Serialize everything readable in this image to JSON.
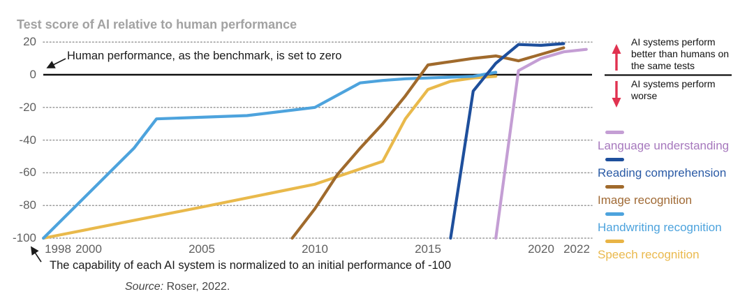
{
  "title": "Test score of AI relative to human performance",
  "annotations": {
    "benchmark_note": "Human performance, as the benchmark, is set to zero",
    "normalization_note": "The capability of each AI system is normalized to an initial performance of -100",
    "source_label": "Source:",
    "source_value": "Roser, 2022."
  },
  "side_panel": {
    "above_text": "AI systems perform better than humans on the same tests",
    "below_text": "AI systems perform worse",
    "arrow_color": "#e03250"
  },
  "legend": [
    {
      "label": "Language understanding",
      "swatch_color": "#c49ed4",
      "text_color": "#a678bd"
    },
    {
      "label": "Reading comprehension",
      "swatch_color": "#1e4f9c",
      "text_color": "#2a5aa5"
    },
    {
      "label": "Image recognition",
      "swatch_color": "#a06a2c",
      "text_color": "#a06a35"
    },
    {
      "label": "Handwriting recognition",
      "swatch_color": "#4da3dd",
      "text_color": "#4da3dd"
    },
    {
      "label": "Speech recognition",
      "swatch_color": "#e9b445",
      "text_color": "#eab94d"
    }
  ],
  "chart_data": {
    "type": "line",
    "title": "Test score of AI relative to human performance",
    "xlim": [
      1998,
      2022.6
    ],
    "ylim": [
      -104,
      22
    ],
    "grid": "dotted horizontal gridlines, solid black baseline at 0",
    "baseline_value": 0,
    "x_ticks": [
      {
        "label": "1998",
        "year": 1998
      },
      {
        "label": "2000",
        "year": 2000
      },
      {
        "label": "2005",
        "year": 2005
      },
      {
        "label": "2010",
        "year": 2010
      },
      {
        "label": "2015",
        "year": 2015
      },
      {
        "label": "2020",
        "year": 2020
      },
      {
        "label": "2022",
        "year": 2022
      }
    ],
    "y_ticks": [
      {
        "label": "20",
        "value": 20
      },
      {
        "label": "0",
        "value": 0
      },
      {
        "label": "-20",
        "value": -20
      },
      {
        "label": "-40",
        "value": -40
      },
      {
        "label": "-60",
        "value": -60
      },
      {
        "label": "-80",
        "value": -80
      },
      {
        "label": "-100",
        "value": -100
      }
    ],
    "series": [
      {
        "name": "Speech recognition",
        "color": "#e9b94b",
        "points": [
          [
            1998,
            -100
          ],
          [
            2005,
            -81
          ],
          [
            2010,
            -67
          ],
          [
            2013,
            -53
          ],
          [
            2014,
            -27
          ],
          [
            2015,
            -9
          ],
          [
            2016,
            -4
          ],
          [
            2017,
            -2
          ],
          [
            2018,
            -1
          ]
        ]
      },
      {
        "name": "Handwriting recognition",
        "color": "#4da3dd",
        "points": [
          [
            1998,
            -100
          ],
          [
            2002,
            -45
          ],
          [
            2003,
            -27
          ],
          [
            2007,
            -25
          ],
          [
            2010,
            -20
          ],
          [
            2012,
            -5
          ],
          [
            2013,
            -3.5
          ],
          [
            2014,
            -2.5
          ],
          [
            2016,
            -1.5
          ],
          [
            2017,
            -1
          ],
          [
            2018,
            1.5
          ]
        ]
      },
      {
        "name": "Language understanding",
        "color": "#c49ed4",
        "points": [
          [
            2018,
            -100
          ],
          [
            2019,
            2.5
          ],
          [
            2020,
            10
          ],
          [
            2021,
            14
          ],
          [
            2022,
            15.5
          ]
        ]
      },
      {
        "name": "Image recognition",
        "color": "#a06a2c",
        "points": [
          [
            2009,
            -100
          ],
          [
            2010,
            -82
          ],
          [
            2011,
            -61
          ],
          [
            2012,
            -45
          ],
          [
            2013,
            -30
          ],
          [
            2014,
            -13
          ],
          [
            2015,
            6
          ],
          [
            2016,
            8
          ],
          [
            2017,
            10
          ],
          [
            2018,
            11.5
          ],
          [
            2019,
            8.5
          ],
          [
            2021,
            16.5
          ]
        ]
      },
      {
        "name": "Reading comprehension",
        "color": "#1e4f9c",
        "points": [
          [
            2016,
            -100
          ],
          [
            2017,
            -10
          ],
          [
            2018,
            7
          ],
          [
            2019,
            18.5
          ],
          [
            2020,
            18
          ],
          [
            2021,
            19
          ]
        ]
      }
    ]
  }
}
